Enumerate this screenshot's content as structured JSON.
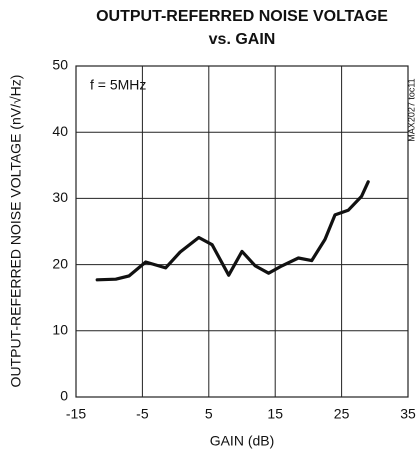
{
  "chart_data": {
    "type": "line",
    "title": [
      "OUTPUT-REFERRED NOISE VOLTAGE",
      "vs. GAIN"
    ],
    "x_label": "GAIN (dB)",
    "y_label": "OUTPUT-REFERRED NOISE VOLTAGE (nV/√Hz)",
    "annotations": [
      "f = 5MHz",
      "MAX2027 toc11"
    ],
    "x": [
      -11.8,
      -9,
      -7,
      -4.5,
      -1.5,
      0.7,
      3.5,
      5.5,
      8,
      10,
      12,
      14,
      16,
      18.5,
      20.5,
      22.5,
      24,
      26,
      28,
      29
    ],
    "values": [
      17.7,
      17.8,
      18.3,
      20.4,
      19.5,
      21.9,
      24.1,
      23,
      18.4,
      22,
      19.8,
      18.7,
      19.8,
      21,
      20.6,
      23.8,
      27.5,
      28.2,
      30.3,
      32.5
    ],
    "color": "#111111",
    "xlim": [
      -15,
      35
    ],
    "xticks": [
      -15,
      -5,
      5,
      15,
      25,
      35
    ],
    "ylim": [
      0,
      50
    ],
    "yticks": [
      0,
      10,
      20,
      30,
      40,
      50
    ],
    "grid": true
  }
}
